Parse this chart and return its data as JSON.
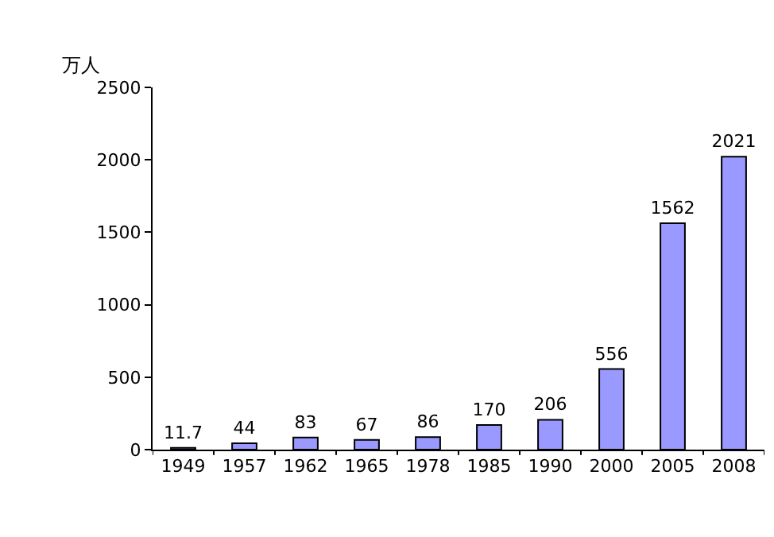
{
  "chart_data": {
    "type": "bar",
    "ylabel": "万人",
    "categories": [
      "1949",
      "1957",
      "1962",
      "1965",
      "1978",
      "1985",
      "1990",
      "2000",
      "2005",
      "2008"
    ],
    "values": [
      11.7,
      44,
      83,
      67,
      86,
      170,
      206,
      556,
      1562,
      2021
    ],
    "color": "#9999ff",
    "ylim": [
      0,
      2500
    ],
    "yticks": [
      0,
      500,
      1000,
      1500,
      2000,
      2500
    ],
    "data_labels": true
  }
}
